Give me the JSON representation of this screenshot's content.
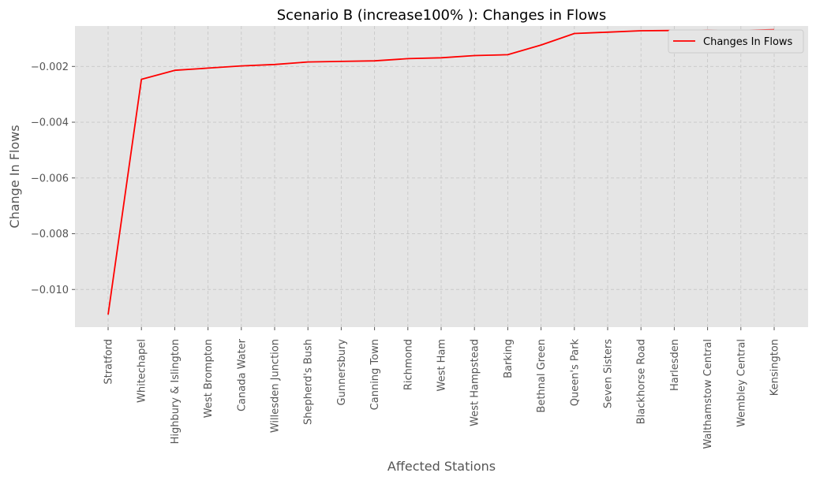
{
  "chart_data": {
    "type": "line",
    "title": "Scenario B (increase100% ): Changes in Flows",
    "xlabel": "Affected Stations",
    "ylabel": "Change In Flows",
    "categories": [
      "Stratford",
      "Whitechapel",
      "Highbury & Islington",
      "West Brompton",
      "Canada Water",
      "Willesden Junction",
      "Shepherd's Bush",
      "Gunnersbury",
      "Canning Town",
      "Richmond",
      "West Ham",
      "West Hampstead",
      "Barking",
      "Bethnal Green",
      "Queen's Park",
      "Seven Sisters",
      "Blackhorse Road",
      "Harlesden",
      "Walthamstow Central",
      "Wembley Central",
      "Kensington"
    ],
    "series": [
      {
        "name": "Changes In Flows",
        "color": "#ff0000",
        "values": [
          -0.0109,
          -0.00246,
          -0.00214,
          -0.00206,
          -0.00198,
          -0.00193,
          -0.00184,
          -0.00182,
          -0.0018,
          -0.00172,
          -0.00169,
          -0.00161,
          -0.00158,
          -0.00123,
          -0.00082,
          -0.00077,
          -0.00072,
          -0.00071,
          -0.0007,
          -0.00071,
          -0.00068
        ]
      }
    ],
    "yticks": [
      -0.002,
      -0.004,
      -0.006,
      -0.008,
      -0.01
    ],
    "ytick_labels": [
      "−0.002",
      "−0.004",
      "−0.006",
      "−0.008",
      "−0.010"
    ],
    "ylim": [
      -0.01135,
      -0.00055
    ],
    "grid": true,
    "legend": "top-right",
    "colors": {
      "background": "#e5e5e5",
      "grid": "#c8c8c8",
      "line": "#ff0000"
    }
  }
}
